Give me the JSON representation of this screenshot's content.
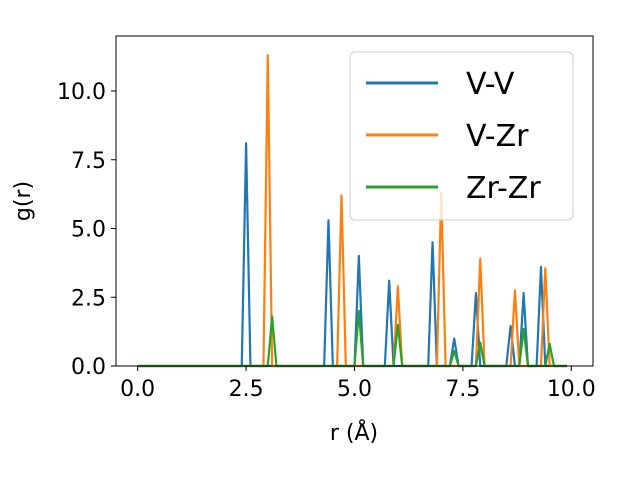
{
  "chart_data": {
    "type": "line",
    "title": "",
    "xlabel": "r (Å)",
    "ylabel": "g(r)",
    "xlim": [
      -0.5,
      10.5
    ],
    "ylim": [
      0,
      12
    ],
    "xticks": [
      0.0,
      2.5,
      5.0,
      7.5,
      10.0
    ],
    "xtick_labels": [
      "0.0",
      "2.5",
      "5.0",
      "7.5",
      "10.0"
    ],
    "yticks": [
      0.0,
      2.5,
      5.0,
      7.5,
      10.0
    ],
    "ytick_labels": [
      "0.0",
      "2.5",
      "5.0",
      "7.5",
      "10.0"
    ],
    "legend_position": "top-right",
    "peak_half_width": 0.1,
    "x_range": [
      0.0,
      9.9
    ],
    "series": [
      {
        "name": "V-V",
        "color": "#1f77b4",
        "peaks": [
          [
            2.5,
            8.1
          ],
          [
            4.4,
            5.3
          ],
          [
            5.1,
            4.0
          ],
          [
            5.8,
            3.1
          ],
          [
            6.8,
            4.5
          ],
          [
            7.3,
            1.0
          ],
          [
            7.8,
            2.65
          ],
          [
            8.6,
            1.45
          ],
          [
            8.9,
            2.65
          ],
          [
            9.3,
            3.6
          ]
        ]
      },
      {
        "name": "V-Zr",
        "color": "#ff7f0e",
        "peaks": [
          [
            3.0,
            11.3
          ],
          [
            4.7,
            6.2
          ],
          [
            6.0,
            2.9
          ],
          [
            7.0,
            6.3
          ],
          [
            7.9,
            3.9
          ],
          [
            8.7,
            2.75
          ],
          [
            9.4,
            3.55
          ]
        ]
      },
      {
        "name": "Zr-Zr",
        "color": "#2ca02c",
        "peaks": [
          [
            3.1,
            1.8
          ],
          [
            5.1,
            2.0
          ],
          [
            6.0,
            1.5
          ],
          [
            7.3,
            0.55
          ],
          [
            7.9,
            0.85
          ],
          [
            8.9,
            1.35
          ],
          [
            9.5,
            0.8
          ]
        ]
      }
    ]
  }
}
